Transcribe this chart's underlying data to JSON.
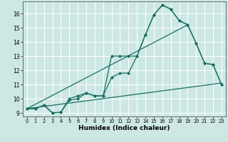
{
  "xlabel": "Humidex (Indice chaleur)",
  "bg_color": "#cde8e4",
  "line_color": "#1a6e62",
  "grid_color": "#ffffff",
  "xlim": [
    -0.5,
    23.5
  ],
  "ylim": [
    8.75,
    16.85
  ],
  "xticks": [
    0,
    1,
    2,
    3,
    4,
    5,
    6,
    7,
    8,
    9,
    10,
    11,
    12,
    13,
    14,
    15,
    16,
    17,
    18,
    19,
    20,
    21,
    22,
    23
  ],
  "yticks": [
    9,
    10,
    11,
    12,
    13,
    14,
    15,
    16
  ],
  "line1": {
    "x": [
      0,
      1,
      2,
      3,
      4,
      5,
      6,
      7,
      8,
      9,
      10,
      11,
      12,
      13,
      14,
      15,
      16,
      17,
      18,
      19,
      20,
      21,
      22,
      23
    ],
    "y": [
      9.3,
      9.3,
      9.55,
      9.0,
      9.05,
      10.0,
      10.2,
      10.4,
      10.2,
      10.2,
      13.0,
      13.0,
      13.0,
      13.0,
      14.5,
      15.9,
      16.6,
      16.3,
      15.5,
      15.2,
      13.9,
      12.5,
      12.4,
      11.0
    ]
  },
  "line2": {
    "x": [
      0,
      1,
      2,
      3,
      4,
      5,
      6,
      7,
      8,
      9,
      10,
      11,
      12,
      13,
      14,
      15,
      16,
      17,
      18,
      19,
      20,
      21,
      22,
      23
    ],
    "y": [
      9.3,
      9.3,
      9.55,
      9.0,
      9.05,
      9.9,
      10.0,
      10.4,
      10.2,
      10.2,
      11.5,
      11.8,
      11.8,
      13.0,
      14.5,
      15.9,
      16.6,
      16.3,
      15.5,
      15.2,
      13.9,
      12.5,
      12.4,
      11.0
    ]
  },
  "line3": {
    "x": [
      0,
      19
    ],
    "y": [
      9.3,
      15.2
    ]
  },
  "line4": {
    "x": [
      0,
      23
    ],
    "y": [
      9.3,
      11.1
    ]
  }
}
